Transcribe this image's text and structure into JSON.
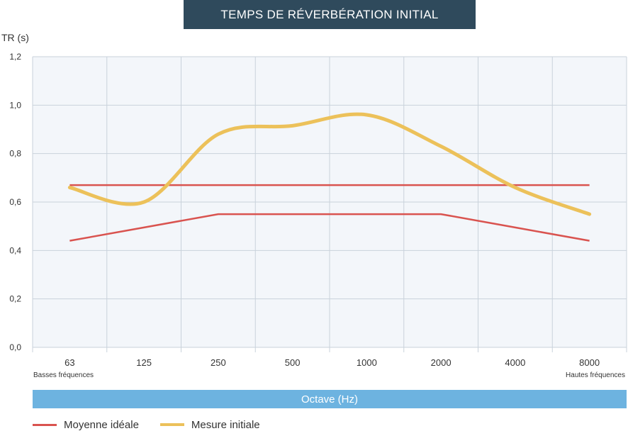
{
  "chart_data": {
    "type": "line",
    "title": "TEMPS DE RÉVERBÉRATION INITIAL",
    "ylabel": "TR (s)",
    "xlabel": "Octave (Hz)",
    "categories": [
      "63",
      "125",
      "250",
      "500",
      "1000",
      "2000",
      "4000",
      "8000"
    ],
    "x_notes": {
      "left": "Basses fréquences",
      "right": "Hautes fréquences"
    },
    "ylim": [
      0,
      1.2
    ],
    "yticks": [
      "0,0",
      "0,2",
      "0,4",
      "0,6",
      "0,8",
      "1,0",
      "1,2"
    ],
    "grid": true,
    "legend_position": "bottom-left",
    "ideal_range": {
      "name": "Moyenne idéale",
      "color": "#d9534f",
      "upper": [
        0.67,
        0.67,
        0.67,
        0.67,
        0.67,
        0.67,
        0.67,
        0.67
      ],
      "lower": [
        0.44,
        0.495,
        0.55,
        0.55,
        0.55,
        0.55,
        0.495,
        0.44
      ]
    },
    "series": [
      {
        "name": "Mesure initiale",
        "color": "#ecc15a",
        "values": [
          0.66,
          0.6,
          0.88,
          0.915,
          0.96,
          0.83,
          0.66,
          0.55
        ]
      }
    ]
  }
}
